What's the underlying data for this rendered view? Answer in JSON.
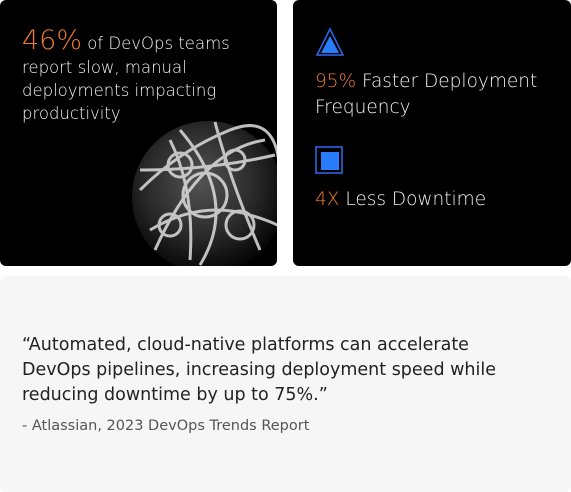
{
  "stat_card": {
    "highlight": "46%",
    "text": "of DevOps teams report slow, manual deployments impacting productivity"
  },
  "benefits": [
    {
      "highlight": "95%",
      "text": "Faster Deployment Frequency"
    },
    {
      "highlight": "4X",
      "text": "Less Downtime"
    }
  ],
  "quote": {
    "text": "“Automated, cloud-native platforms can accelerate DevOps pipelines, increasing deployment speed while reducing downtime by up to 75%.”",
    "source": "- Atlassian, 2023 DevOps Trends Report"
  }
}
